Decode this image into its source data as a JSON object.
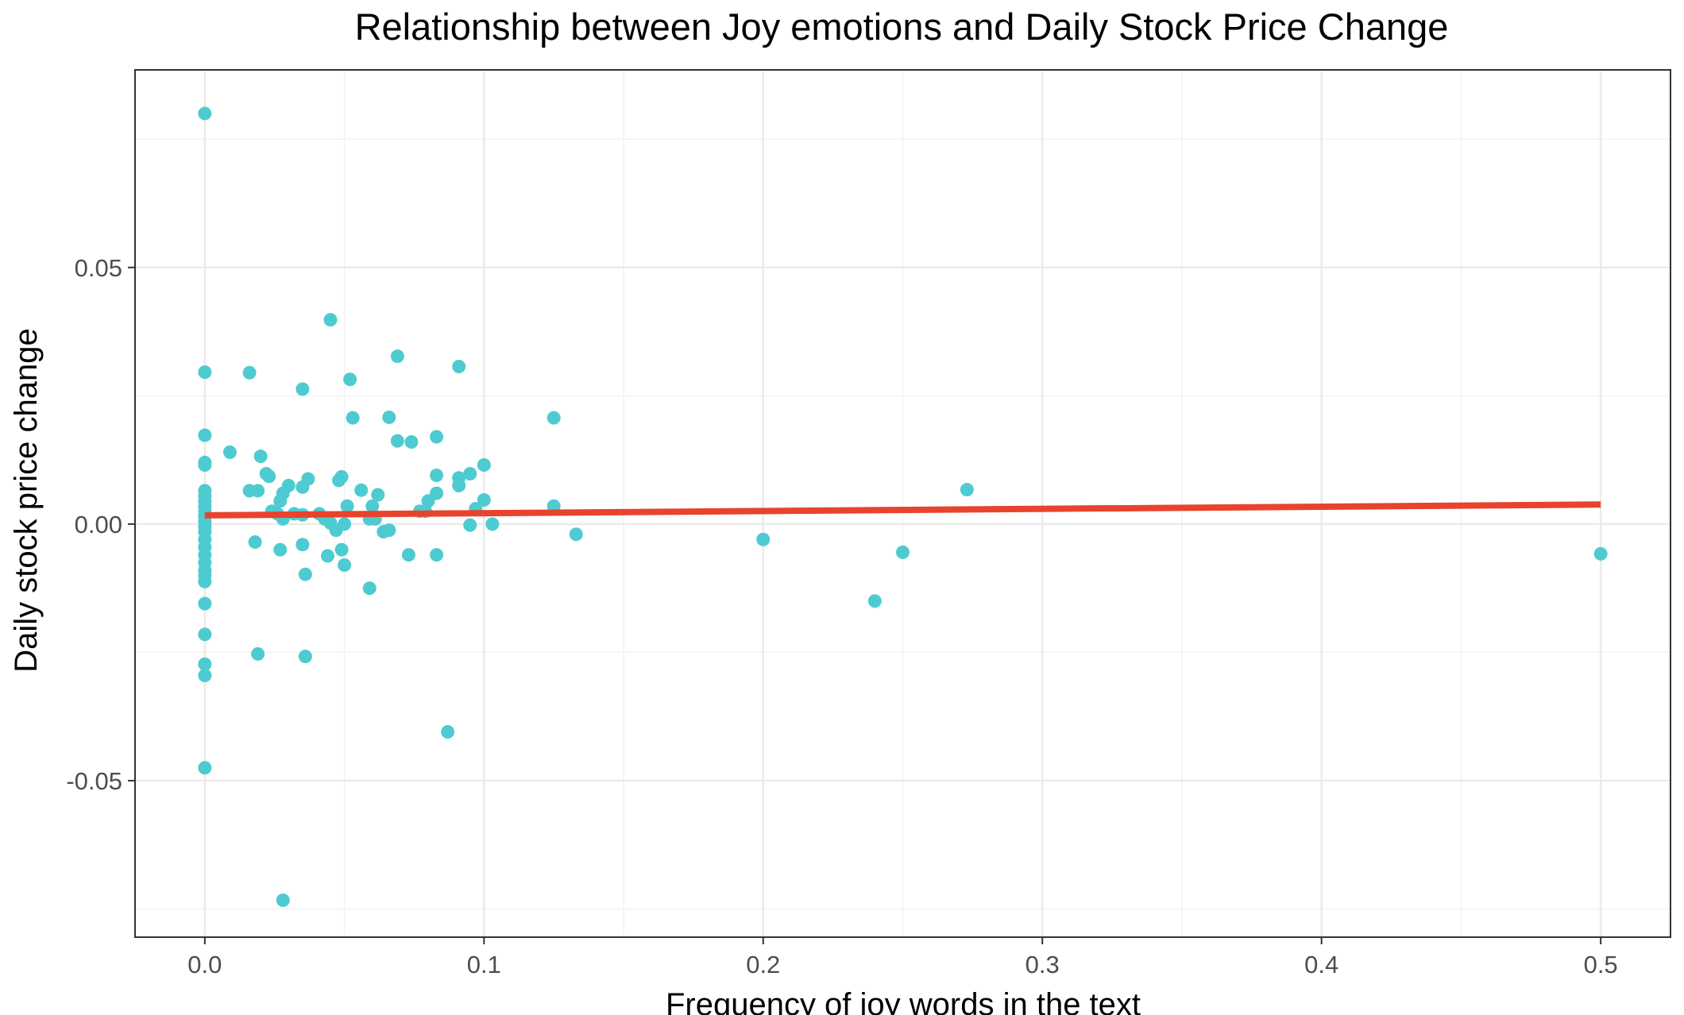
{
  "chart_data": {
    "type": "scatter",
    "title": "Relationship between Joy emotions and Daily Stock Price Change",
    "xlabel": "Frequency of joy words in the text",
    "ylabel": "Daily stock price change",
    "xlim": [
      -0.025,
      0.525
    ],
    "ylim": [
      -0.0805,
      0.0885
    ],
    "x_ticks": [
      0.0,
      0.1,
      0.2,
      0.3,
      0.4,
      0.5
    ],
    "x_tick_labels": [
      "0.0",
      "0.1",
      "0.2",
      "0.3",
      "0.4",
      "0.5"
    ],
    "y_ticks": [
      -0.05,
      0.0,
      0.05
    ],
    "y_tick_labels": [
      "-0.05",
      "0.00",
      "0.05"
    ],
    "grid": true,
    "legend": "none",
    "point_color": "#4ECBD0",
    "fit_color": "#E8432D",
    "fit_line": {
      "x": [
        0.0,
        0.5
      ],
      "y": [
        0.0017,
        0.0038
      ]
    },
    "points": [
      {
        "x": 0.0,
        "y": 0.08
      },
      {
        "x": 0.0,
        "y": 0.0296
      },
      {
        "x": 0.0,
        "y": 0.0173
      },
      {
        "x": 0.0,
        "y": 0.012
      },
      {
        "x": 0.0,
        "y": 0.0115
      },
      {
        "x": 0.0,
        "y": 0.0065
      },
      {
        "x": 0.0,
        "y": 0.0055
      },
      {
        "x": 0.0,
        "y": 0.0045
      },
      {
        "x": 0.0,
        "y": 0.0035
      },
      {
        "x": 0.0,
        "y": 0.0025
      },
      {
        "x": 0.0,
        "y": 0.0015
      },
      {
        "x": 0.0,
        "y": 0.0005
      },
      {
        "x": 0.0,
        "y": -0.0005
      },
      {
        "x": 0.0,
        "y": -0.0015
      },
      {
        "x": 0.0,
        "y": -0.003
      },
      {
        "x": 0.0,
        "y": -0.0045
      },
      {
        "x": 0.0,
        "y": -0.006
      },
      {
        "x": 0.0,
        "y": -0.0075
      },
      {
        "x": 0.0,
        "y": -0.009
      },
      {
        "x": 0.0,
        "y": -0.01
      },
      {
        "x": 0.0,
        "y": -0.0112
      },
      {
        "x": 0.0,
        "y": -0.0155
      },
      {
        "x": 0.0,
        "y": -0.0215
      },
      {
        "x": 0.0,
        "y": -0.0273
      },
      {
        "x": 0.0,
        "y": -0.0295
      },
      {
        "x": 0.0,
        "y": -0.0475
      },
      {
        "x": 0.009,
        "y": 0.014
      },
      {
        "x": 0.016,
        "y": 0.0295
      },
      {
        "x": 0.016,
        "y": 0.0065
      },
      {
        "x": 0.018,
        "y": -0.0035
      },
      {
        "x": 0.019,
        "y": 0.0065
      },
      {
        "x": 0.019,
        "y": -0.0253
      },
      {
        "x": 0.02,
        "y": 0.0132
      },
      {
        "x": 0.022,
        "y": 0.0098
      },
      {
        "x": 0.023,
        "y": 0.0093
      },
      {
        "x": 0.024,
        "y": 0.0025
      },
      {
        "x": 0.026,
        "y": 0.002
      },
      {
        "x": 0.027,
        "y": 0.0045
      },
      {
        "x": 0.027,
        "y": -0.005
      },
      {
        "x": 0.028,
        "y": 0.006
      },
      {
        "x": 0.028,
        "y": 0.001
      },
      {
        "x": 0.028,
        "y": -0.0733
      },
      {
        "x": 0.03,
        "y": 0.0075
      },
      {
        "x": 0.032,
        "y": 0.002
      },
      {
        "x": 0.035,
        "y": 0.0263
      },
      {
        "x": 0.035,
        "y": 0.0072
      },
      {
        "x": 0.035,
        "y": 0.0018
      },
      {
        "x": 0.035,
        "y": -0.004
      },
      {
        "x": 0.036,
        "y": -0.0098
      },
      {
        "x": 0.036,
        "y": -0.0258
      },
      {
        "x": 0.037,
        "y": 0.0088
      },
      {
        "x": 0.041,
        "y": 0.002
      },
      {
        "x": 0.043,
        "y": 0.001
      },
      {
        "x": 0.044,
        "y": -0.0062
      },
      {
        "x": 0.045,
        "y": 0.0398
      },
      {
        "x": 0.045,
        "y": 0.0002
      },
      {
        "x": 0.047,
        "y": -0.0012
      },
      {
        "x": 0.048,
        "y": 0.0085
      },
      {
        "x": 0.049,
        "y": 0.0092
      },
      {
        "x": 0.049,
        "y": -0.005
      },
      {
        "x": 0.05,
        "y": -0.008
      },
      {
        "x": 0.05,
        "y": 0.0
      },
      {
        "x": 0.051,
        "y": 0.0035
      },
      {
        "x": 0.052,
        "y": 0.0282
      },
      {
        "x": 0.053,
        "y": 0.0207
      },
      {
        "x": 0.056,
        "y": 0.0066
      },
      {
        "x": 0.059,
        "y": 0.001
      },
      {
        "x": 0.059,
        "y": -0.0125
      },
      {
        "x": 0.06,
        "y": 0.0035
      },
      {
        "x": 0.061,
        "y": 0.001
      },
      {
        "x": 0.062,
        "y": 0.0057
      },
      {
        "x": 0.064,
        "y": -0.0015
      },
      {
        "x": 0.066,
        "y": 0.0208
      },
      {
        "x": 0.066,
        "y": -0.0012
      },
      {
        "x": 0.069,
        "y": 0.0327
      },
      {
        "x": 0.069,
        "y": 0.0162
      },
      {
        "x": 0.073,
        "y": -0.006
      },
      {
        "x": 0.074,
        "y": 0.016
      },
      {
        "x": 0.077,
        "y": 0.0025
      },
      {
        "x": 0.079,
        "y": 0.0025
      },
      {
        "x": 0.08,
        "y": 0.0045
      },
      {
        "x": 0.083,
        "y": 0.017
      },
      {
        "x": 0.083,
        "y": 0.0095
      },
      {
        "x": 0.083,
        "y": 0.006
      },
      {
        "x": 0.083,
        "y": -0.006
      },
      {
        "x": 0.087,
        "y": -0.0405
      },
      {
        "x": 0.091,
        "y": 0.0307
      },
      {
        "x": 0.091,
        "y": 0.009
      },
      {
        "x": 0.091,
        "y": 0.0075
      },
      {
        "x": 0.095,
        "y": 0.0098
      },
      {
        "x": 0.095,
        "y": -0.0002
      },
      {
        "x": 0.097,
        "y": 0.003
      },
      {
        "x": 0.1,
        "y": 0.0115
      },
      {
        "x": 0.1,
        "y": 0.0047
      },
      {
        "x": 0.103,
        "y": 0.0
      },
      {
        "x": 0.125,
        "y": 0.0207
      },
      {
        "x": 0.125,
        "y": 0.0035
      },
      {
        "x": 0.133,
        "y": -0.002
      },
      {
        "x": 0.2,
        "y": -0.003
      },
      {
        "x": 0.24,
        "y": -0.015
      },
      {
        "x": 0.25,
        "y": -0.0055
      },
      {
        "x": 0.273,
        "y": 0.0067
      },
      {
        "x": 0.5,
        "y": -0.0058
      }
    ]
  }
}
